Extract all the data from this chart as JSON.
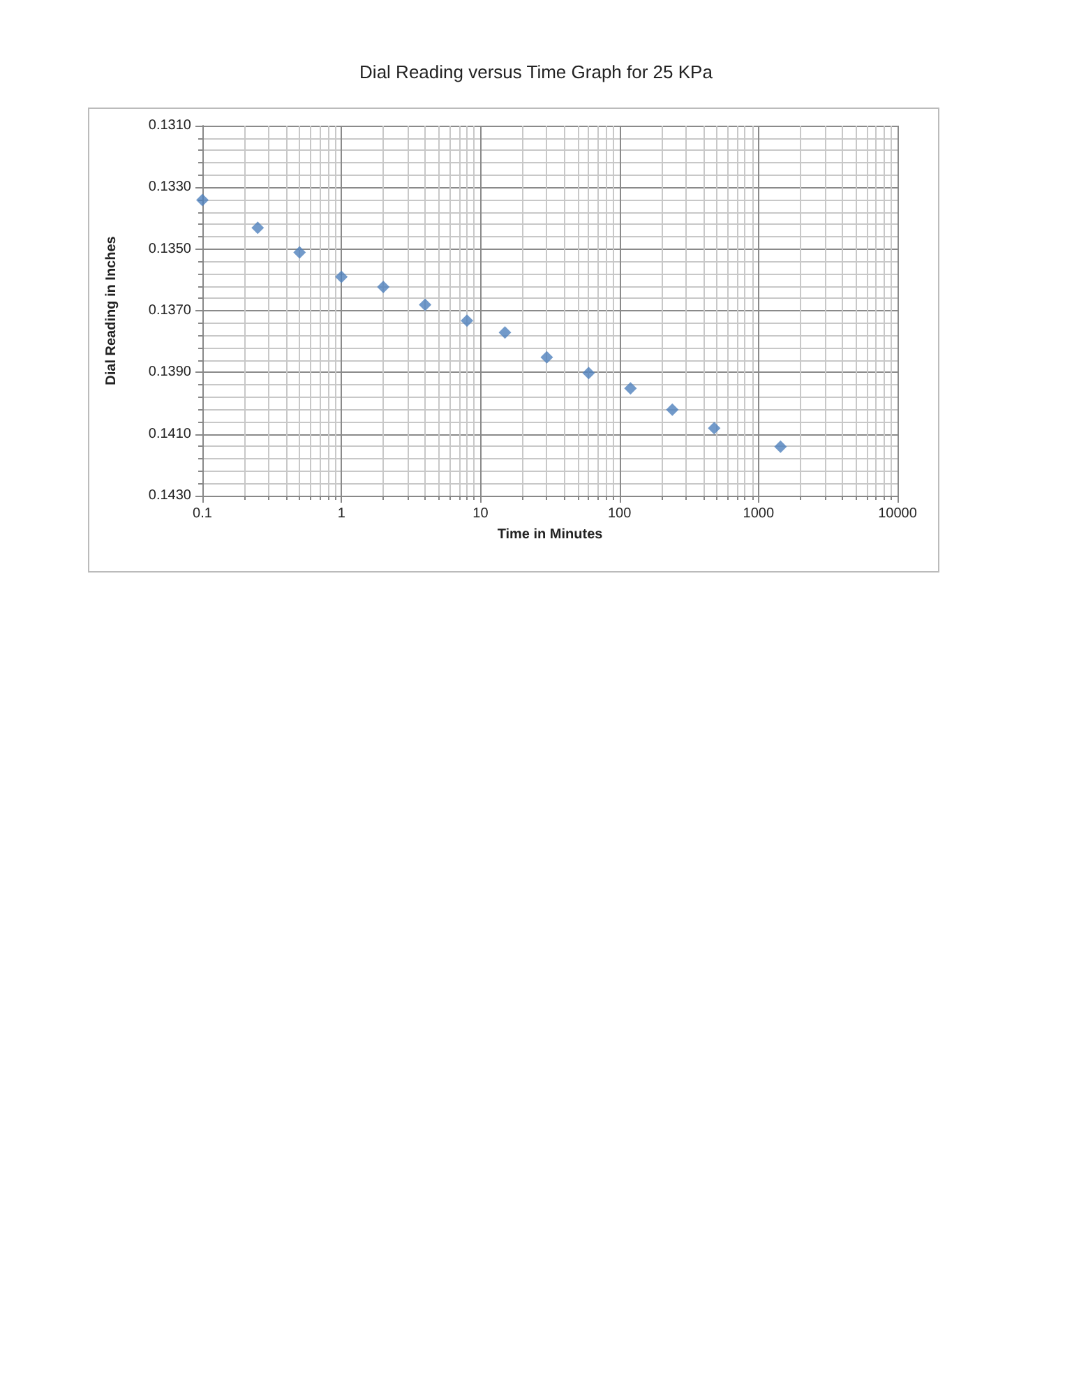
{
  "chart_data": {
    "type": "scatter",
    "title": "Dial Reading versus Time Graph for 25 KPa",
    "xlabel": "Time in Minutes",
    "ylabel": "Dial Reading in Inches",
    "x": [
      0.1,
      0.25,
      0.5,
      1,
      2,
      4,
      8,
      15,
      30,
      60,
      120,
      240,
      480,
      1440
    ],
    "series": [
      {
        "color": "#4f81bd",
        "values": [
          0.13341,
          0.13431,
          0.13511,
          0.1359,
          0.13623,
          0.13681,
          0.13732,
          0.13771,
          0.13851,
          0.13902,
          0.13952,
          0.14021,
          0.14081,
          0.14141
        ]
      }
    ],
    "log": "x",
    "xlim": [
      0.1,
      10000
    ],
    "xticks": [
      0.1,
      1,
      10,
      100,
      1000,
      10000
    ],
    "ylim": [
      0.143,
      0.131
    ],
    "yticks": [
      {
        "value": 0.131,
        "label": "0.1310"
      },
      {
        "value": 0.133,
        "label": "0.1330"
      },
      {
        "value": 0.135,
        "label": "0.1350"
      },
      {
        "value": 0.137,
        "label": "0.1370"
      },
      {
        "value": 0.139,
        "label": "0.1390"
      },
      {
        "value": 0.141,
        "label": "0.1410"
      },
      {
        "value": 0.143,
        "label": "0.1430"
      }
    ],
    "grid": true,
    "marker": "diamond"
  }
}
